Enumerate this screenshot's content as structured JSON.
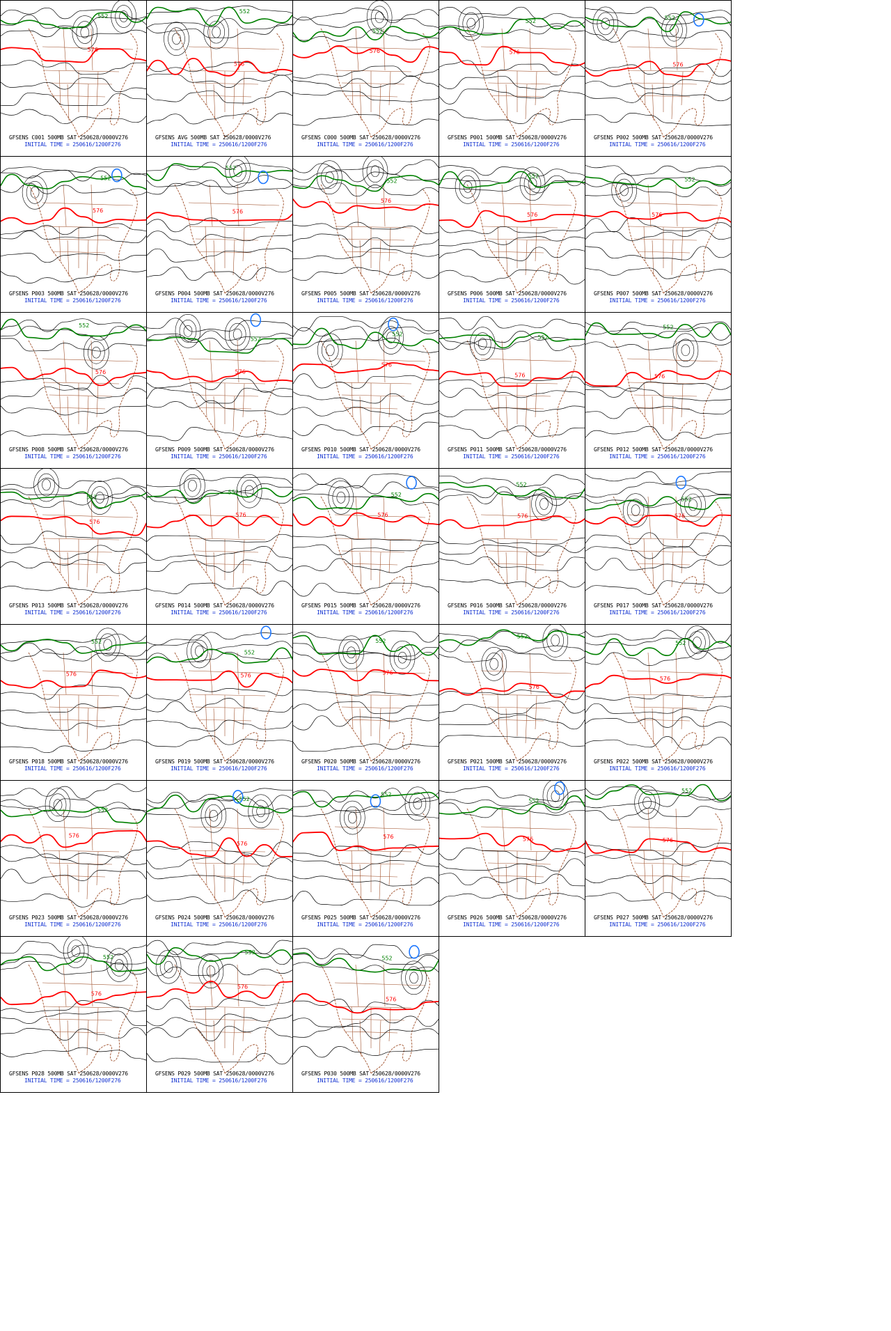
{
  "colors": {
    "contour": "#000000",
    "contour_576": "#ff0000",
    "contour_552": "#008000",
    "low_center": "#1e78ff",
    "map_borders": "#a0522d",
    "caption_run": "#000000",
    "caption_init": "#1030d0"
  },
  "contour_labels": {
    "green": "552",
    "red": "576"
  },
  "panels": [
    {
      "run": "GFSENS C001 500MB SAT 250628/0000V276",
      "init": "INITIAL TIME = 250616/1200F276"
    },
    {
      "run": "GFSENS AVG 500MB SAT 250628/0000V276",
      "init": "INITIAL TIME = 250616/1200F276"
    },
    {
      "run": "GFSENS C000 500MB SAT 250628/0000V276",
      "init": "INITIAL TIME = 250616/1200F276"
    },
    {
      "run": "GFSENS P001 500MB SAT 250628/0000V276",
      "init": "INITIAL TIME = 250616/1200F276"
    },
    {
      "run": "GFSENS P002 500MB SAT 250628/0000V276",
      "init": "INITIAL TIME = 250616/1200F276"
    },
    {
      "run": "GFSENS P003 500MB SAT 250628/0000V276",
      "init": "INITIAL TIME = 250616/1200F276"
    },
    {
      "run": "GFSENS P004 500MB SAT 250628/0000V276",
      "init": "INITIAL TIME = 250616/1200F276"
    },
    {
      "run": "GFSENS P005 500MB SAT 250628/0000V276",
      "init": "INITIAL TIME = 250616/1200F276"
    },
    {
      "run": "GFSENS P006 500MB SAT 250628/0000V276",
      "init": "INITIAL TIME = 250616/1200F276"
    },
    {
      "run": "GFSENS P007 500MB SAT 250628/0000V276",
      "init": "INITIAL TIME = 250616/1200F276"
    },
    {
      "run": "GFSENS P008 500MB SAT 250628/0000V276",
      "init": "INITIAL TIME = 250616/1200F276"
    },
    {
      "run": "GFSENS P009 500MB SAT 250628/0000V276",
      "init": "INITIAL TIME = 250616/1200F276"
    },
    {
      "run": "GFSENS P010 500MB SAT 250628/0000V276",
      "init": "INITIAL TIME = 250616/1200F276"
    },
    {
      "run": "GFSENS P011 500MB SAT 250628/0000V276",
      "init": "INITIAL TIME = 250616/1200F276"
    },
    {
      "run": "GFSENS P012 500MB SAT 250628/0000V276",
      "init": "INITIAL TIME = 250616/1200F276"
    },
    {
      "run": "GFSENS P013 500MB SAT 250628/0000V276",
      "init": "INITIAL TIME = 250616/1200F276"
    },
    {
      "run": "GFSENS P014 500MB SAT 250628/0000V276",
      "init": "INITIAL TIME = 250616/1200F276"
    },
    {
      "run": "GFSENS P015 500MB SAT 250628/0000V276",
      "init": "INITIAL TIME = 250616/1200F276"
    },
    {
      "run": "GFSENS P016 500MB SAT 250628/0000V276",
      "init": "INITIAL TIME = 250616/1200F276"
    },
    {
      "run": "GFSENS P017 500MB SAT 250628/0000V276",
      "init": "INITIAL TIME = 250616/1200F276"
    },
    {
      "run": "GFSENS P018 500MB SAT 250628/0000V276",
      "init": "INITIAL TIME = 250616/1200F276"
    },
    {
      "run": "GFSENS P019 500MB SAT 250628/0000V276",
      "init": "INITIAL TIME = 250616/1200F276"
    },
    {
      "run": "GFSENS P020 500MB SAT 250628/0000V276",
      "init": "INITIAL TIME = 250616/1200F276"
    },
    {
      "run": "GFSENS P021 500MB SAT 250628/0000V276",
      "init": "INITIAL TIME = 250616/1200F276"
    },
    {
      "run": "GFSENS P022 500MB SAT 250628/0000V276",
      "init": "INITIAL TIME = 250616/1200F276"
    },
    {
      "run": "GFSENS P023 500MB SAT 250628/0000V276",
      "init": "INITIAL TIME = 250616/1200F276"
    },
    {
      "run": "GFSENS P024 500MB SAT 250628/0000V276",
      "init": "INITIAL TIME = 250616/1200F276"
    },
    {
      "run": "GFSENS P025 500MB SAT 250628/0000V276",
      "init": "INITIAL TIME = 250616/1200F276"
    },
    {
      "run": "GFSENS P026 500MB SAT 250628/0000V276",
      "init": "INITIAL TIME = 250616/1200F276"
    },
    {
      "run": "GFSENS P027 500MB SAT 250628/0000V276",
      "init": "INITIAL TIME = 250616/1200F276"
    },
    {
      "run": "GFSENS P028 500MB SAT 250628/0000V276",
      "init": "INITIAL TIME = 250616/1200F276"
    },
    {
      "run": "GFSENS P029 500MB SAT 250628/0000V276",
      "init": "INITIAL TIME = 250616/1200F276"
    },
    {
      "run": "GFSENS P030 500MB SAT 250628/0000V276",
      "init": "INITIAL TIME = 250616/1200F276"
    }
  ]
}
